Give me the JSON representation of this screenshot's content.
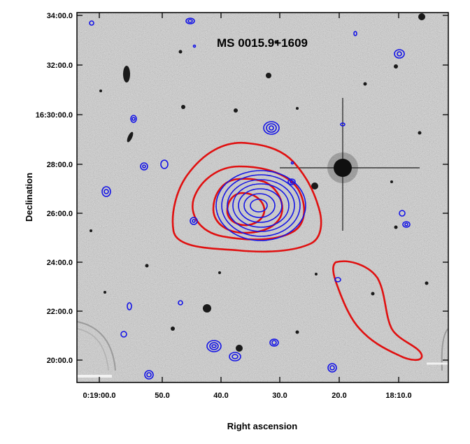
{
  "chart_data": {
    "type": "contour",
    "title": "MS 0015.9+1609",
    "xlabel": "Right ascension",
    "ylabel": "Declination",
    "x_ticks": [
      "0:19:00.0",
      "50.0",
      "40.0",
      "30.0",
      "20.0",
      "18:10.0"
    ],
    "y_ticks": [
      "34:00.0",
      "32:00.0",
      "16:30:00.0",
      "28:00.0",
      "26:00.0",
      "24:00.0",
      "22:00.0",
      "20:00.0"
    ],
    "background": "optical sky image, inverted greyscale",
    "grid": false,
    "contour_sets": [
      {
        "color": "#e01010",
        "levels": 4
      },
      {
        "color": "#1414e6",
        "levels": 7
      }
    ],
    "colors": {
      "red_contours": "#e01010",
      "blue_contours": "#1414e6",
      "frame": "#000000",
      "sky": "#d9d9d9"
    }
  }
}
